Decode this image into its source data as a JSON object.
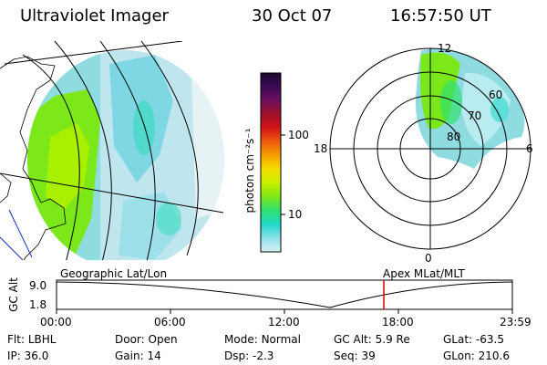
{
  "header": {
    "instrument": "Ultraviolet Imager",
    "date": "30 Oct 07",
    "time": "16:57:50 UT"
  },
  "colorbar": {
    "unit_label": "photon cm⁻²s⁻¹",
    "tick_labels": [
      "100",
      "10"
    ],
    "colors_top_to_bottom": [
      "#1a0a2e",
      "#3b0a55",
      "#6d0f5e",
      "#a0102a",
      "#d01515",
      "#f05a10",
      "#f5a000",
      "#f5e000",
      "#c8f000",
      "#7ce81a",
      "#30e070",
      "#20d8c8",
      "#8ee0ec",
      "#d8f0f2"
    ]
  },
  "polar_plot": {
    "mlt_labels": {
      "top": "12",
      "left": "18",
      "right": "6",
      "bottom": "0"
    },
    "lat_labels": [
      "60",
      "70",
      "80"
    ]
  },
  "timeline": {
    "y_axis_label": "GC Alt",
    "y_ticks": [
      "9.0",
      "1.8"
    ],
    "left_title": "Geographic Lat/Lon",
    "right_title": "Apex MLat/MLT",
    "x_ticks": [
      "00:00",
      "06:00",
      "12:00",
      "18:00",
      "23:59"
    ],
    "marker_color": "#e00000"
  },
  "status": {
    "row1": [
      {
        "label": "Flt:",
        "value": "LBHL"
      },
      {
        "label": "Door:",
        "value": "Open"
      },
      {
        "label": "Mode:",
        "value": "Normal"
      },
      {
        "label": "GC Alt:",
        "value": "5.9 Re"
      },
      {
        "label": "GLat:",
        "value": "-63.5"
      }
    ],
    "row2": [
      {
        "label": "IP:",
        "value": "36.0"
      },
      {
        "label": "Gain:",
        "value": "14"
      },
      {
        "label": "Dsp:",
        "value": "-2.3"
      },
      {
        "label": "Seq:",
        "value": "39"
      },
      {
        "label": "GLon:",
        "value": "210.6"
      }
    ]
  }
}
